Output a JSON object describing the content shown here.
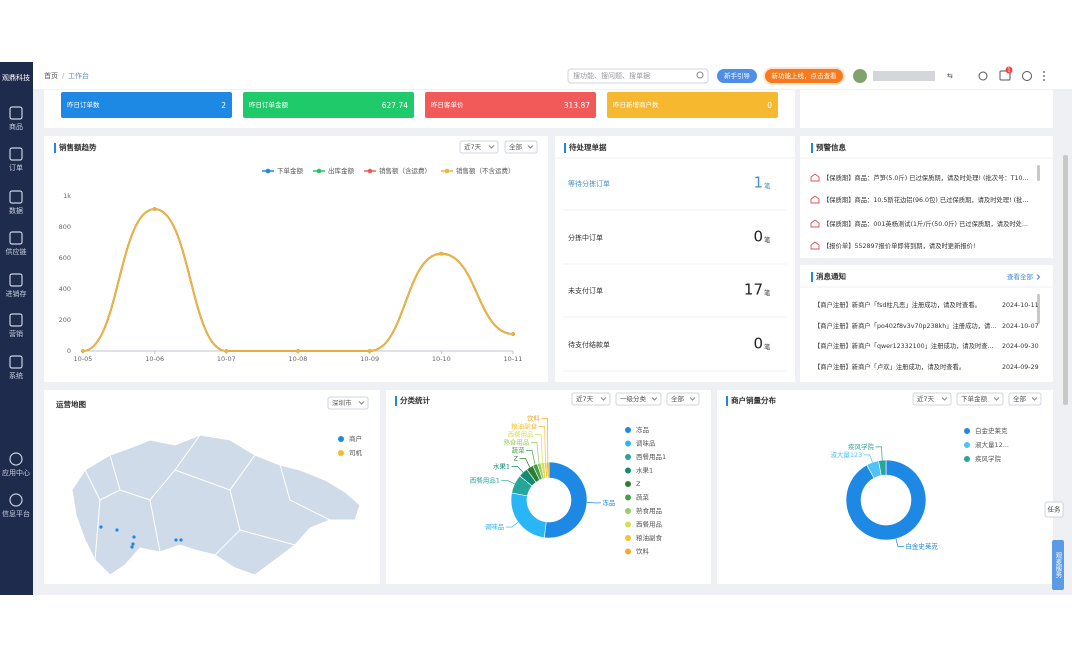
{
  "sidebar": {
    "logo": "观鼎科技",
    "menu": [
      "商品",
      "订单",
      "数据",
      "供应链",
      "进销存",
      "营销",
      "系统"
    ],
    "bottom": [
      "应用中心",
      "信息平台"
    ]
  },
  "topbar": {
    "breadcrumb": [
      "首页",
      "工作台"
    ],
    "search_placeholder": "搜功能、搜问题、搜单据",
    "guide": "新手引导",
    "new_feature": "新功能上线，点击查看",
    "notification_count": 1
  },
  "stats": [
    {
      "label": "昨日订单数",
      "value": 2,
      "color": "#1e88e5"
    },
    {
      "label": "昨日订单金额",
      "value": 627.74,
      "color": "#1fca6b"
    },
    {
      "label": "昨日客单价",
      "value": 313.87,
      "color": "#f25a5a"
    },
    {
      "label": "昨日新增商户数",
      "value": 0,
      "color": "#f5b82e"
    }
  ],
  "chart_data": [
    {
      "type": "line",
      "title": "销售额趋势",
      "filters": [
        "近7天",
        "全部"
      ],
      "categories": [
        "10-05",
        "10-06",
        "10-07",
        "10-08",
        "10-09",
        "10-10",
        "10-11"
      ],
      "series": [
        {
          "name": "下单金额",
          "color": "#1e88e5",
          "values": [
            0,
            916,
            0,
            0,
            0,
            627.74,
            110
          ]
        },
        {
          "name": "出库金额",
          "color": "#22c55e",
          "values": [
            0,
            916,
            0,
            0,
            0,
            627.74,
            110
          ]
        },
        {
          "name": "销售额（含运费）",
          "color": "#f25a5a",
          "values": [
            0,
            916,
            0,
            0,
            0,
            627.74,
            110
          ]
        },
        {
          "name": "销售额（不含运费）",
          "color": "#f0b43c",
          "values": [
            0,
            916,
            0,
            0,
            0,
            627.74,
            110
          ]
        }
      ],
      "ylim": [
        0,
        1000
      ],
      "yticks": [
        0,
        200,
        400,
        600,
        800,
        {
          "value": 1000,
          "label": "1k"
        }
      ],
      "grid": false
    },
    {
      "type": "pie",
      "title": "分类统计",
      "filters": [
        "近7天",
        "一级分类",
        "全部"
      ],
      "categories": [
        "冻品",
        "调味品",
        "西餐用品1",
        "水果1",
        "Z",
        "蔬菜",
        "熟食用品",
        "西餐用品",
        "粮油副食",
        "饮料"
      ],
      "values": [
        52,
        26,
        8,
        4,
        3,
        2,
        1.5,
        1.5,
        1,
        1
      ],
      "colors": [
        "#1e88e5",
        "#29b6f6",
        "#26a69a",
        "#138a72",
        "#2e7d32",
        "#43a047",
        "#9ccc65",
        "#d4e157",
        "#fbc02d",
        "#f9a825"
      ]
    },
    {
      "type": "pie",
      "title": "商户销量分布",
      "filters": [
        "近7天",
        "下单金额",
        "全部"
      ],
      "categories": [
        "白金史莱克",
        "淑大量123",
        "疾风学院"
      ],
      "legend_labels": [
        "白金史莱克",
        "淑大量12...",
        "疾风学院"
      ],
      "values": [
        92,
        5,
        3
      ],
      "colors": [
        "#1e88e5",
        "#4fc3f7",
        "#26a69a"
      ]
    },
    {
      "type": "map",
      "title": "运营地图",
      "filters": [
        "深圳市"
      ],
      "legend": [
        {
          "name": "商户",
          "color": "#1e88e5"
        },
        {
          "name": "司机",
          "color": "#f5b82e"
        }
      ]
    }
  ],
  "pending": {
    "title": "待处理单据",
    "unit": "笔",
    "items": [
      {
        "label": "等待分拣订单",
        "count": 1
      },
      {
        "label": "分拣中订单",
        "count": 0
      },
      {
        "label": "未支付订单",
        "count": 17
      },
      {
        "label": "待支付结款单",
        "count": 0
      }
    ]
  },
  "alerts": {
    "title": "预警信息",
    "items": [
      "【保质期】商品：芦笋(5.0斤) 已过保质期，请及时处理! (批次号：T10...",
      "【保质期】商品：10.5斯花边铝(96.0包) 已过保质期，请及时处理! (批...",
      "【保质期】商品：001英杨测试(1斤/斤(50.0斤) 已过保质期，请及时处...",
      "【报价单】552897报价单即将到期，请及时更新报价!"
    ]
  },
  "messages": {
    "title": "消息通知",
    "view_all": "查看全部",
    "items": [
      {
        "text": "【商户注册】新商户「fsd柱凡恶」注册成功，请及时查看。",
        "date": "2024-10-11"
      },
      {
        "text": "【商户注册】新商户「po402f8v3v70p238kh」注册成功，请...",
        "date": "2024-10-07"
      },
      {
        "text": "【商户注册】新商户「qwer12332100」注册成功，请及时查...",
        "date": "2024-09-30"
      },
      {
        "text": "【商户注册】新商户「卢欢」注册成功，请及时查看。",
        "date": "2024-09-29"
      }
    ]
  },
  "float": [
    "任务",
    "观麦服务"
  ]
}
